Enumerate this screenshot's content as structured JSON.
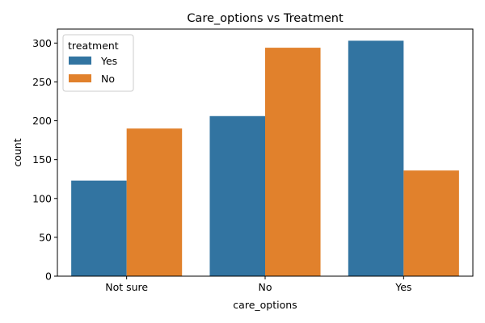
{
  "chart_data": {
    "type": "bar",
    "title": "Care_options vs Treatment",
    "xlabel": "care_options",
    "ylabel": "count",
    "categories": [
      "Not sure",
      "No",
      "Yes"
    ],
    "series": [
      {
        "name": "Yes",
        "color": "#3274a1",
        "values": [
          123,
          206,
          303
        ]
      },
      {
        "name": "No",
        "color": "#e1812c",
        "values": [
          190,
          294,
          136
        ]
      }
    ],
    "ylim": [
      0,
      318
    ],
    "yticks": [
      0,
      50,
      100,
      150,
      200,
      250,
      300
    ],
    "grid": false,
    "legend": {
      "title": "treatment",
      "placement": "upper-left"
    }
  }
}
